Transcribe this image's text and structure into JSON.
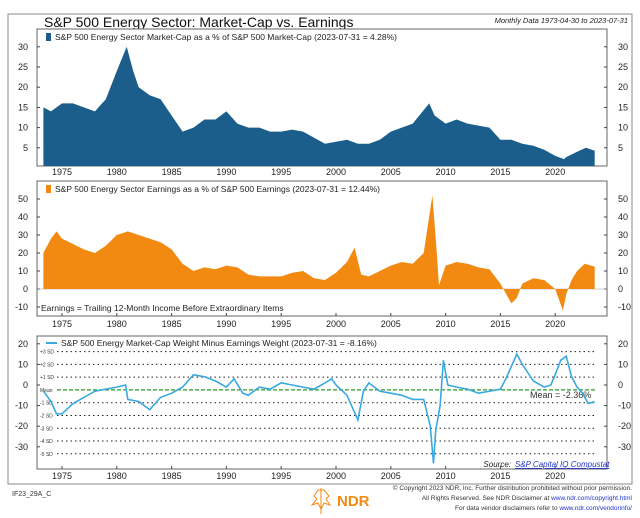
{
  "title": "S&P 500 Energy Sector: Market-Cap vs. Earnings",
  "subtitle": "Monthly Data 1973-04-30 to 2023-07-31",
  "x_ticks": [
    1975,
    1980,
    1985,
    1990,
    1995,
    2000,
    2005,
    2010,
    2015,
    2020
  ],
  "chart_data": [
    {
      "type": "area",
      "legend": "S&P 500 Energy Sector Market-Cap as a % of S&P 500 Market-Cap (2023-07-31 = 4.28%)",
      "color": "#1b5e8c",
      "ylim": [
        0,
        32
      ],
      "y_ticks": [
        5,
        10,
        15,
        20,
        25,
        30
      ],
      "x": [
        1973.3,
        1974,
        1975,
        1976,
        1977,
        1978,
        1979,
        1980,
        1980.9,
        1981.5,
        1982,
        1983,
        1984,
        1985,
        1986,
        1987,
        1988,
        1989,
        1990,
        1991,
        1992,
        1993,
        1994,
        1995,
        1996,
        1997,
        1998,
        1999,
        2000,
        2001,
        2002,
        2003,
        2004,
        2005,
        2006,
        2007,
        2008.5,
        2009,
        2010,
        2011,
        2012,
        2013,
        2014,
        2015,
        2016,
        2017,
        2018,
        2019,
        2020,
        2020.8,
        2021,
        2022,
        2022.8,
        2023.6
      ],
      "values": [
        15,
        14,
        16,
        16,
        15,
        14,
        17,
        24,
        30,
        24,
        20,
        18,
        17,
        13,
        9,
        10,
        12,
        12,
        14,
        11,
        10,
        10,
        9,
        9,
        9.5,
        9,
        7.5,
        6,
        6.5,
        7,
        6,
        6,
        7,
        9,
        10,
        11,
        16,
        13,
        11,
        12,
        11,
        10.5,
        10,
        7,
        7,
        6,
        5.5,
        4.5,
        3,
        2.2,
        2.7,
        4,
        5,
        4.28
      ]
    },
    {
      "type": "area",
      "legend": "S&P 500 Energy Sector Earnings as a % of S&P 500 Earnings (2023-07-31 = 12.44%)",
      "note": "Earnings = Trailing 12-Month Income Before Extraordinary Items",
      "color": "#f28a12",
      "ylim": [
        -12,
        55
      ],
      "y_ticks": [
        -10,
        0,
        10,
        20,
        30,
        40,
        50
      ],
      "x": [
        1973.3,
        1974,
        1974.5,
        1975,
        1976,
        1977,
        1978,
        1979,
        1980,
        1981,
        1982,
        1983,
        1984,
        1985,
        1986,
        1987,
        1988,
        1989,
        1990,
        1991,
        1992,
        1993,
        1994,
        1995,
        1996,
        1997,
        1998,
        1999,
        2000,
        2001,
        2001.7,
        2002.3,
        2003,
        2004,
        2005,
        2006,
        2007,
        2008,
        2008.8,
        2009.2,
        2009.4,
        2010,
        2011,
        2012,
        2013,
        2014,
        2015,
        2016,
        2016.5,
        2017,
        2018,
        2019,
        2020,
        2020.7,
        2021,
        2021.5,
        2022,
        2022.7,
        2023.6
      ],
      "values": [
        20,
        28,
        32,
        28,
        25,
        22,
        20,
        24,
        30,
        32,
        30,
        28,
        26,
        22,
        14,
        10,
        12,
        11,
        13,
        12,
        8,
        7,
        7,
        7,
        9,
        10,
        6,
        5,
        9,
        15,
        23,
        8,
        7,
        10,
        13,
        15,
        14,
        20,
        52,
        20,
        2,
        13,
        15,
        14,
        12,
        11,
        3,
        -8,
        -5,
        3,
        6,
        5,
        0,
        -12,
        -3,
        5,
        10,
        14,
        12.44
      ]
    },
    {
      "type": "line",
      "legend": "S&P 500 Energy Market-Cap Weight Minus Earnings Weight (2023-07-31 = -8.16%)",
      "color": "#3aa9e0",
      "ylim": [
        -40,
        22
      ],
      "y_ticks": [
        -30,
        -20,
        -10,
        0,
        10,
        20
      ],
      "mean": -2.36,
      "mean_label": "Mean = -2.36%",
      "mean_tag": "Mean",
      "sd_lines": [
        {
          "label": "+3 SD",
          "value": 16.2
        },
        {
          "label": "+2 SD",
          "value": 10.0
        },
        {
          "label": "+1 SD",
          "value": 3.8
        },
        {
          "label": "-1 SD",
          "value": -8.6
        },
        {
          "label": "-2 SD",
          "value": -14.8
        },
        {
          "label": "-3 SD",
          "value": -21.0
        },
        {
          "label": "-4 SD",
          "value": -27.2
        },
        {
          "label": "-5 SD",
          "value": -33.4
        }
      ],
      "x": [
        1973.3,
        1974,
        1974.5,
        1975,
        1976,
        1977,
        1978,
        1979,
        1980,
        1980.8,
        1981,
        1982,
        1983,
        1984,
        1985,
        1986,
        1987,
        1988,
        1989,
        1990,
        1990.7,
        1991.5,
        1992,
        1993,
        1994,
        1995,
        1996,
        1997,
        1998,
        1999,
        1999.6,
        2000,
        2001,
        2002,
        2002.5,
        2003,
        2004,
        2005,
        2006,
        2007,
        2008,
        2008.6,
        2008.9,
        2009.1,
        2009.5,
        2009.8,
        2010.2,
        2011,
        2012,
        2013,
        2014,
        2015,
        2015.5,
        2016.5,
        2017,
        2018,
        2019,
        2019.6,
        2020,
        2020.5,
        2021,
        2021.5,
        2022,
        2022.5,
        2023,
        2023.6
      ],
      "values": [
        -3,
        -8,
        -14,
        -14,
        -9,
        -6,
        -3,
        -2,
        -1,
        0,
        -7,
        -8,
        -12,
        -6,
        -4,
        -1,
        5,
        4,
        2,
        -1,
        3,
        -4,
        -5,
        -1,
        -2,
        1,
        0,
        -1,
        -2,
        1,
        3,
        0,
        -5,
        -17,
        -3,
        1,
        -3,
        -4,
        -5,
        -7,
        -7,
        -20,
        -38,
        -22,
        -10,
        12,
        0,
        -1,
        -2,
        -4,
        -3,
        -2,
        3,
        15,
        10,
        2,
        -1,
        0,
        5,
        12,
        14,
        4,
        -1,
        -4,
        -9,
        -8.16
      ]
    }
  ],
  "source_label": "Source:",
  "source_link": "S&P Capital IQ Compustat",
  "footer": {
    "code": "IF23_29A_C",
    "logo_text": "NDR",
    "copyright": "© Copyright 2023 NDR, Inc. Further distribution prohibited without prior permission.",
    "rights_prefix": "All Rights Reserved. See NDR Disclaimer at ",
    "rights_link": "www.ndr.com/copyright.html",
    "vendor_prefix": "For data vendor disclaimers refer to ",
    "vendor_link": "www.ndr.com/vendorinfo/"
  }
}
